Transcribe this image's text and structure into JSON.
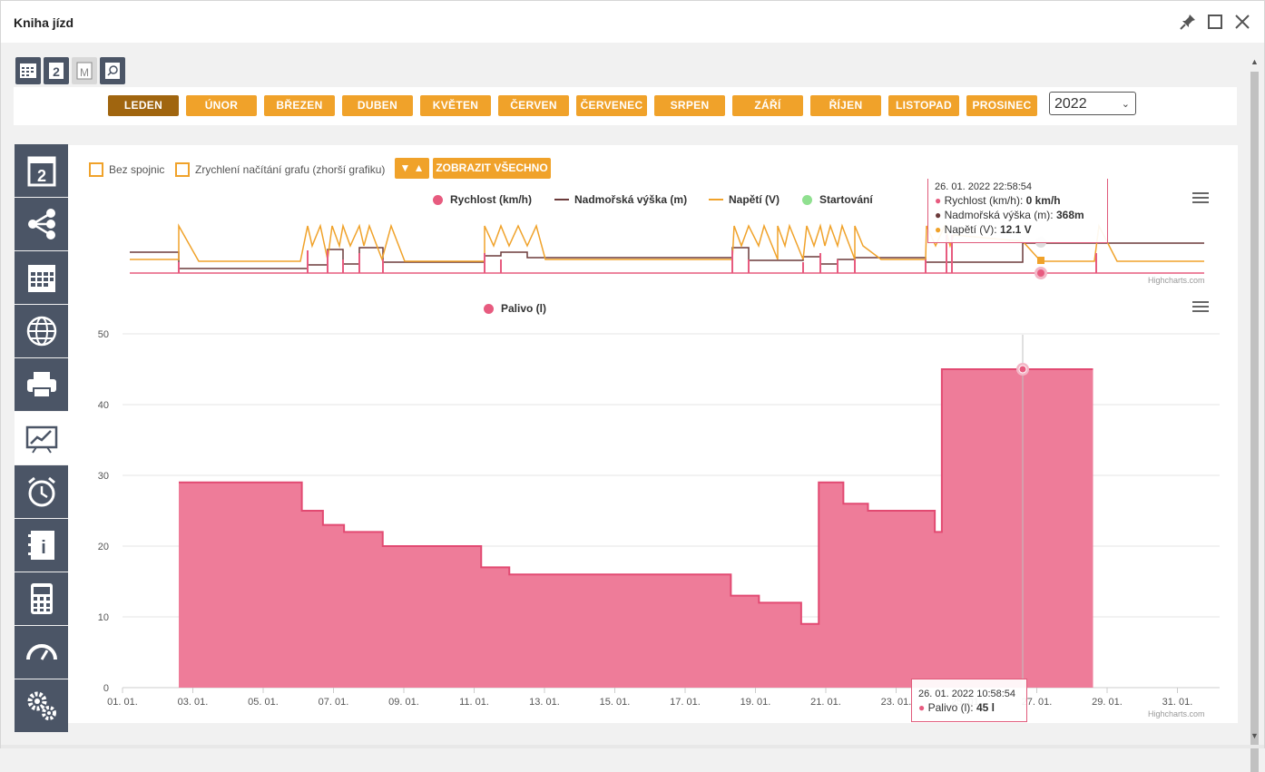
{
  "window": {
    "title": "Kniha jízd"
  },
  "months": [
    {
      "label": "LEDEN",
      "active": true
    },
    {
      "label": "ÚNOR",
      "active": false
    },
    {
      "label": "BŘEZEN",
      "active": false
    },
    {
      "label": "DUBEN",
      "active": false
    },
    {
      "label": "KVĚTEN",
      "active": false
    },
    {
      "label": "ČERVEN",
      "active": false
    },
    {
      "label": "ČERVENEC",
      "active": false
    },
    {
      "label": "SRPEN",
      "active": false
    },
    {
      "label": "ZÁŘÍ",
      "active": false
    },
    {
      "label": "ŘÍJEN",
      "active": false
    },
    {
      "label": "LISTOPAD",
      "active": false
    },
    {
      "label": "PROSINEC",
      "active": false
    }
  ],
  "year": "2022",
  "options": {
    "no_lines_label": "Bez spojnic",
    "fast_load_label": "Zrychlení načítání grafu (zhorší grafiku)",
    "show_all_label": "ZOBRAZIT VŠECHNO",
    "toggle_label": "▼ ▲"
  },
  "colors": {
    "speed": "#e75b7f",
    "altitude": "#6b3a3a",
    "voltage": "#f0a22a",
    "start": "#90e090",
    "fuel": "#e75b7f",
    "accent": "#f0a22a",
    "sidebar": "#4b5566"
  },
  "sidebar_icons": [
    "calendar-day-icon",
    "share-nodes-icon",
    "calendar-month-icon",
    "globe-icon",
    "printer-icon",
    "chart-presentation-icon",
    "alarm-clock-icon",
    "info-book-icon",
    "calculator-icon",
    "speedometer-icon",
    "gears-icon"
  ],
  "top_chart": {
    "legend": [
      "Rychlost (km/h)",
      "Nadmořská výška (m)",
      "Napětí (V)",
      "Startování"
    ],
    "tooltip": {
      "time": "26. 01. 2022 22:58:54",
      "speed_label": "Rychlost (km/h):",
      "speed_value": "0 km/h",
      "altitude_label": "Nadmořská výška (m):",
      "altitude_value": "368m",
      "voltage_label": "Napětí (V):",
      "voltage_value": "12.1 V"
    },
    "credit": "Highcharts.com"
  },
  "chart_data": {
    "type": "area",
    "title": "",
    "series": [
      {
        "name": "Palivo (l)",
        "x": [
          "02. 01.",
          "06. 01.",
          "06. 01.",
          "07. 01.",
          "07. 01.",
          "08. 01.",
          "08. 01.",
          "09. 01.",
          "11. 01.",
          "11. 01.",
          "12. 01.",
          "12. 01.",
          "18. 01.",
          "18. 01.",
          "19. 01.",
          "19. 01.",
          "20. 01.",
          "20. 01.",
          "21. 01.",
          "21. 01.",
          "21. 01.",
          "22. 01.",
          "22. 01.",
          "24. 01.",
          "24. 01.",
          "25. 01.",
          "28. 01."
        ],
        "values": [
          29,
          29,
          25,
          25,
          23,
          23,
          22,
          20,
          19,
          17,
          17,
          16,
          15,
          13,
          13,
          12,
          12,
          9,
          9,
          29,
          26,
          26,
          25,
          25,
          22,
          45,
          45
        ]
      }
    ],
    "xlabel": "",
    "ylabel": "",
    "ylim": [
      0,
      50
    ],
    "yticks": [
      "0",
      "10",
      "20",
      "30",
      "40",
      "50"
    ],
    "xticks": [
      "01. 01.",
      "03. 01.",
      "05. 01.",
      "07. 01.",
      "09. 01.",
      "11. 01.",
      "13. 01.",
      "15. 01.",
      "17. 01.",
      "19. 01.",
      "21. 01.",
      "23. 01.",
      "25. 01.",
      "27. 01.",
      "29. 01.",
      "31. 01."
    ],
    "legend": [
      "Palivo (l)"
    ],
    "tooltip": {
      "time": "26. 01. 2022 10:58:54",
      "label": "Palivo (l):",
      "value": "45 l"
    },
    "credit": "Highcharts.com"
  }
}
